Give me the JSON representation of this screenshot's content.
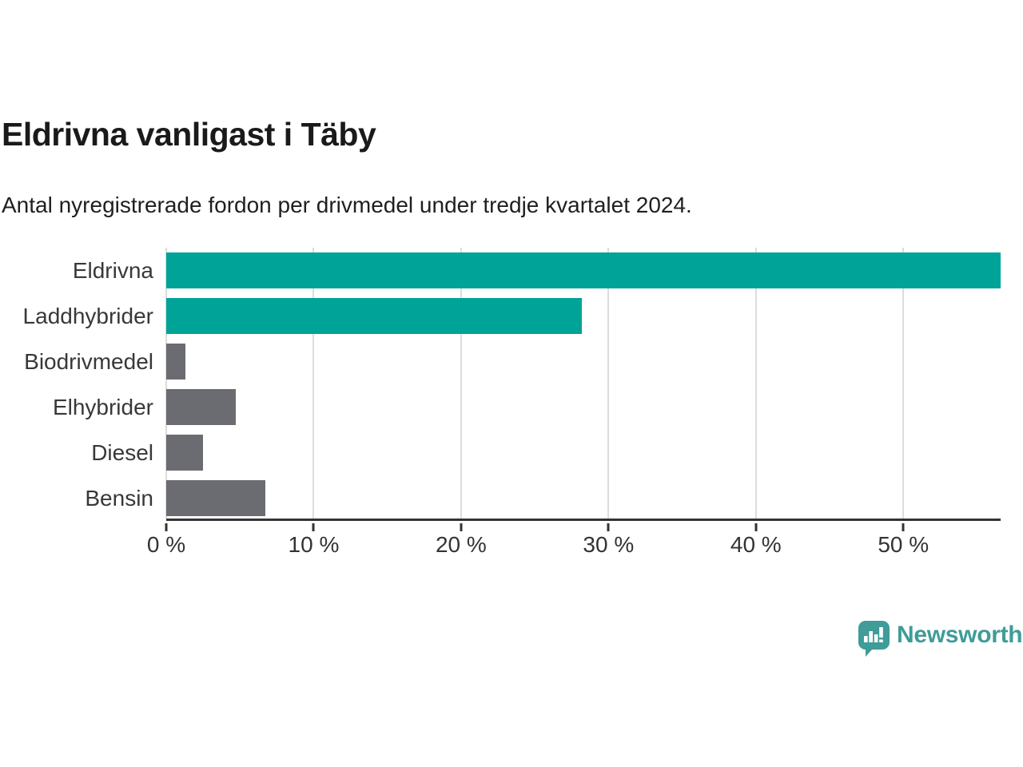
{
  "header": {
    "title": "Eldrivna vanligast i Täby",
    "subtitle": "Antal nyregistrerade fordon per drivmedel under tredje kvartalet 2024."
  },
  "branding": {
    "logo_text": "Newsworthy",
    "logo_color": "#3f9c98",
    "logo_icon": "newsworthy-speech-bubble-barchart-icon"
  },
  "colors": {
    "highlight_bar": "#00a398",
    "default_bar": "#6b6b72",
    "gridline": "#dcdcdc",
    "axis": "#333333",
    "title_text": "#1a1a1a",
    "label_text": "#383838"
  },
  "chart_data": {
    "type": "bar",
    "orientation": "horizontal",
    "title": "Eldrivna vanligast i Täby",
    "subtitle": "Antal nyregistrerade fordon per drivmedel under tredje kvartalet 2024.",
    "unit": "%",
    "categories": [
      "Eldrivna",
      "Laddhybrider",
      "Biodrivmedel",
      "Elhybrider",
      "Diesel",
      "Bensin"
    ],
    "values": [
      56.6,
      28.2,
      1.3,
      4.7,
      2.5,
      6.7
    ],
    "bar_colors": [
      "#00a398",
      "#00a398",
      "#6b6b72",
      "#6b6b72",
      "#6b6b72",
      "#6b6b72"
    ],
    "xlabel": "",
    "ylabel": "",
    "xlim": [
      0,
      56.6
    ],
    "x_ticks": [
      0,
      10,
      20,
      30,
      40,
      50
    ],
    "x_tick_labels": [
      "0 %",
      "10 %",
      "20 %",
      "30 %",
      "40 %",
      "50 %"
    ],
    "grid": "vertical-gridlines-on",
    "legend": "none"
  }
}
